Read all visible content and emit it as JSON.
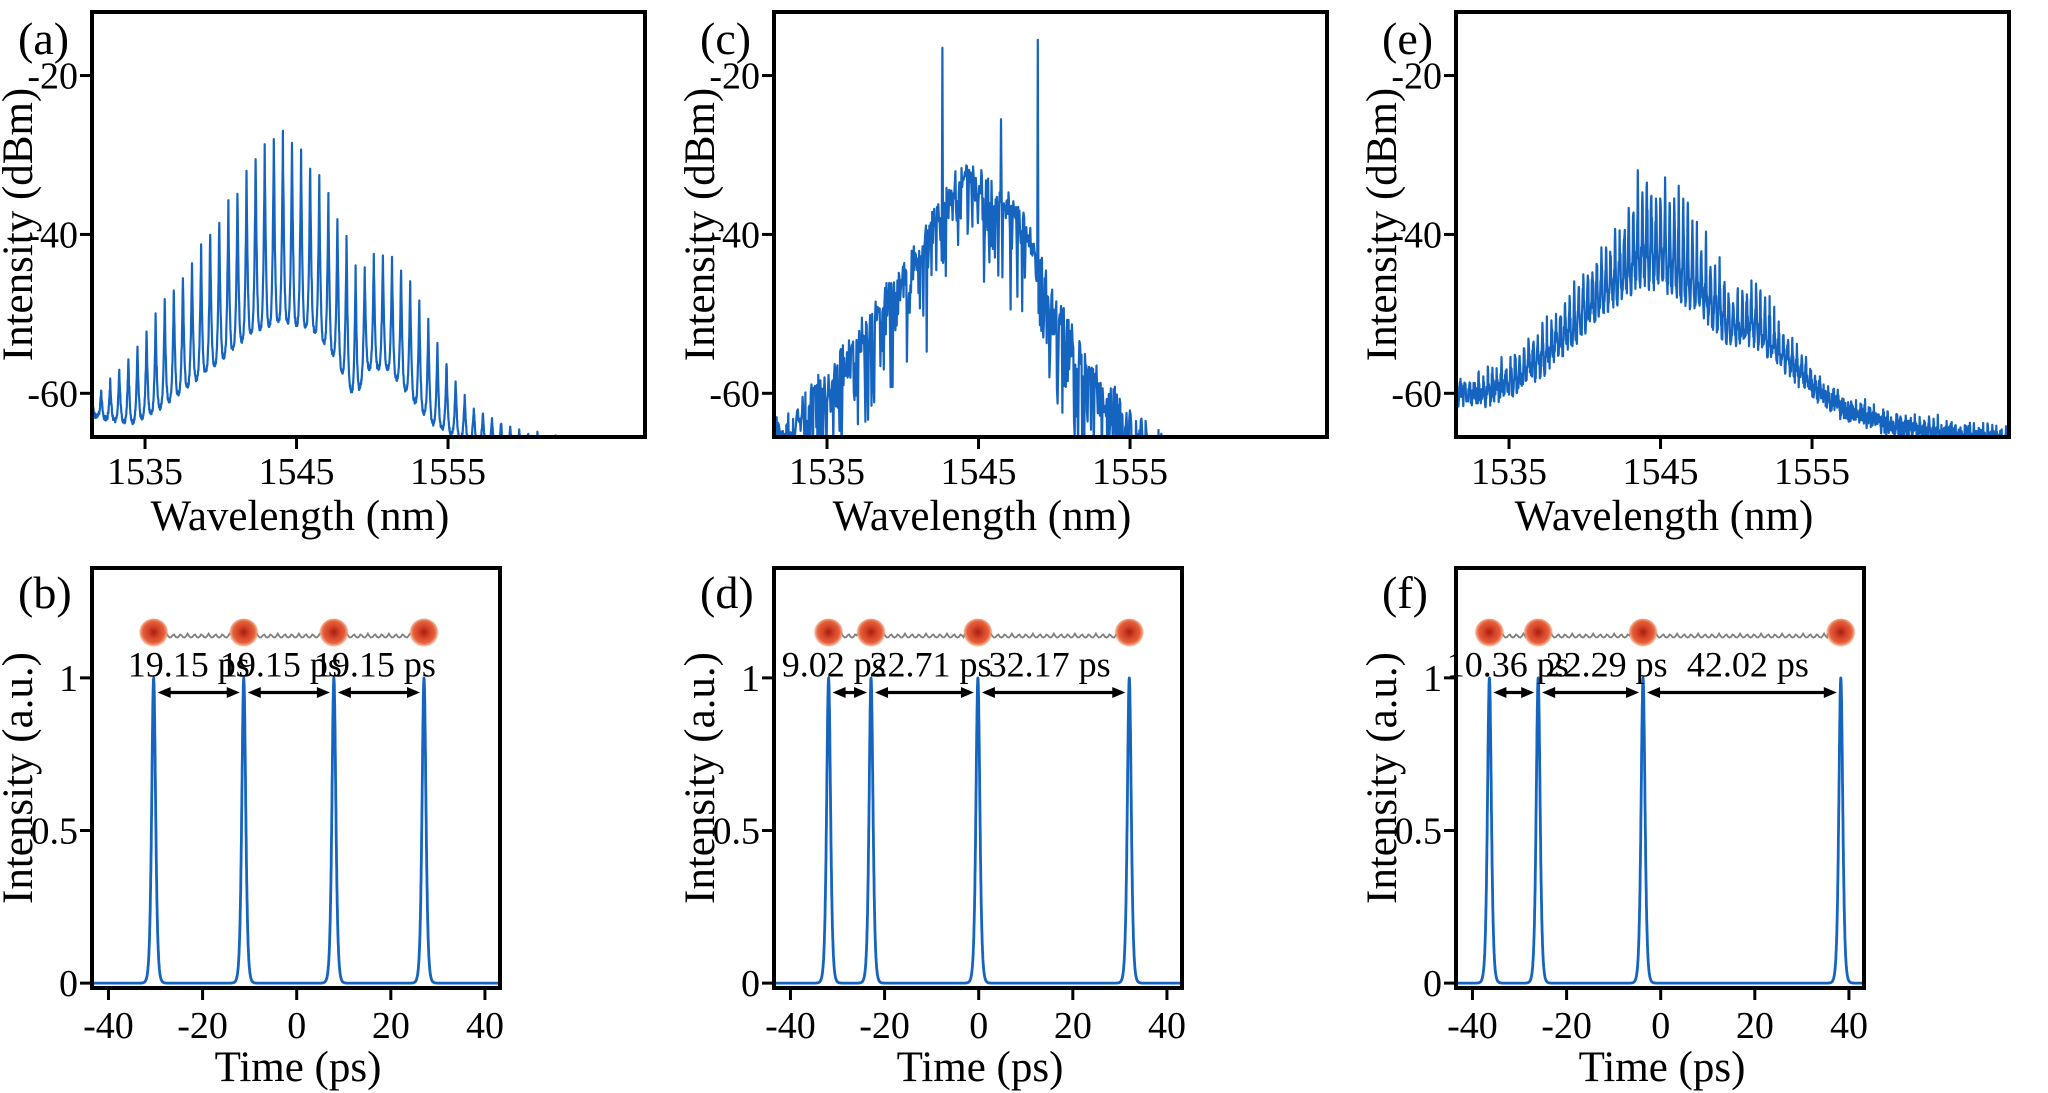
{
  "figure": {
    "background": "#ffffff",
    "series_color": "#1565c0",
    "axis_color": "#000000",
    "ball_color_center": "#a61e10",
    "ball_color_mid": "#d8452a",
    "ball_color_edge": "#f0926c",
    "spring_color": "#7f7f7f"
  },
  "chart_data": [
    {
      "id": "a",
      "panel_label": "(a)",
      "type": "line",
      "kind": "spectrum",
      "style": "comb",
      "xlabel": "Wavelength (nm)",
      "ylabel": "Intensity (dBm)",
      "xlim": [
        1531.5,
        1568
      ],
      "ylim": [
        -65.5,
        -12
      ],
      "xticks": [
        {
          "value": 1535,
          "label": "1535"
        },
        {
          "value": 1545,
          "label": "1545"
        },
        {
          "value": 1555,
          "label": "1555"
        }
      ],
      "yticks": [
        {
          "value": -20,
          "label": "-20"
        },
        {
          "value": -40,
          "label": "-40"
        },
        {
          "value": -60,
          "label": "-60"
        }
      ],
      "comb_period_nm": 0.6,
      "seed": 11,
      "upper_envelope": [
        [
          1531.5,
          -60.5
        ],
        [
          1533,
          -57.5
        ],
        [
          1535,
          -52.5
        ],
        [
          1536.5,
          -47.5
        ],
        [
          1538,
          -43.5
        ],
        [
          1539.5,
          -39
        ],
        [
          1541,
          -34.5
        ],
        [
          1542.5,
          -29.5
        ],
        [
          1543.7,
          -27
        ],
        [
          1544.5,
          -27.5
        ],
        [
          1545.5,
          -29.5
        ],
        [
          1546.5,
          -32.5
        ],
        [
          1547.5,
          -36.5
        ],
        [
          1548.5,
          -41
        ],
        [
          1549.2,
          -46
        ],
        [
          1549.6,
          -43
        ],
        [
          1550.5,
          -41.8
        ],
        [
          1551.5,
          -42.8
        ],
        [
          1552.5,
          -45.5
        ],
        [
          1553.5,
          -49.5
        ],
        [
          1554.5,
          -54
        ],
        [
          1555.5,
          -58
        ],
        [
          1556.5,
          -61
        ],
        [
          1558,
          -63
        ],
        [
          1560,
          -64.5
        ],
        [
          1563,
          -65.3
        ],
        [
          1568,
          -66.5
        ]
      ],
      "lower_envelope": [
        [
          1531.5,
          -62.5
        ],
        [
          1534,
          -63.5
        ],
        [
          1536,
          -61.5
        ],
        [
          1538,
          -58.5
        ],
        [
          1540,
          -55.5
        ],
        [
          1542,
          -52
        ],
        [
          1544,
          -50.5
        ],
        [
          1546,
          -51.5
        ],
        [
          1547.5,
          -55
        ],
        [
          1548.9,
          -60.5
        ],
        [
          1549.6,
          -56.5
        ],
        [
          1551,
          -56.5
        ],
        [
          1552.5,
          -60
        ],
        [
          1554,
          -63.5
        ],
        [
          1556,
          -65.5
        ],
        [
          1558,
          -66.5
        ],
        [
          1568,
          -67.5
        ]
      ]
    },
    {
      "id": "c",
      "panel_label": "(c)",
      "type": "line",
      "kind": "spectrum",
      "style": "noise",
      "xlabel": "Wavelength (nm)",
      "ylabel": "Intensity (dBm)",
      "xlim": [
        1531.5,
        1568
      ],
      "ylim": [
        -65.5,
        -12
      ],
      "xticks": [
        {
          "value": 1535,
          "label": "1535"
        },
        {
          "value": 1545,
          "label": "1545"
        },
        {
          "value": 1555,
          "label": "1555"
        }
      ],
      "yticks": [
        {
          "value": -20,
          "label": "-20"
        },
        {
          "value": -40,
          "label": "-40"
        },
        {
          "value": -60,
          "label": "-60"
        }
      ],
      "noise_depth_db": 12,
      "seed": 23,
      "upper_envelope": [
        [
          1531.5,
          -62.5
        ],
        [
          1532.5,
          -63
        ],
        [
          1533.5,
          -60.5
        ],
        [
          1535,
          -57.5
        ],
        [
          1536.5,
          -53.5
        ],
        [
          1538,
          -49.5
        ],
        [
          1539.5,
          -45.5
        ],
        [
          1541,
          -41
        ],
        [
          1542,
          -37.5
        ],
        [
          1543,
          -34
        ],
        [
          1544,
          -31.5
        ],
        [
          1545,
          -32.5
        ],
        [
          1546,
          -34
        ],
        [
          1547,
          -35.5
        ],
        [
          1548,
          -38
        ],
        [
          1549,
          -41.5
        ],
        [
          1549.8,
          -46
        ],
        [
          1550.5,
          -49.5
        ],
        [
          1551.5,
          -53.5
        ],
        [
          1552.5,
          -56
        ],
        [
          1553.5,
          -58.5
        ],
        [
          1554.5,
          -61.5
        ],
        [
          1555.5,
          -63.5
        ],
        [
          1557,
          -65.5
        ],
        [
          1559,
          -66.8
        ],
        [
          1568,
          -67.3
        ]
      ],
      "spikes": [
        [
          1542.6,
          -16.5
        ],
        [
          1546.5,
          -25.5
        ],
        [
          1548.9,
          -15.5
        ]
      ],
      "dips": [
        [
          1549.7,
          -58
        ]
      ]
    },
    {
      "id": "e",
      "panel_label": "(e)",
      "type": "line",
      "kind": "spectrum",
      "style": "noise-comb",
      "xlabel": "Wavelength (nm)",
      "ylabel": "Intensity (dBm)",
      "xlim": [
        1531.5,
        1568
      ],
      "ylim": [
        -65.5,
        -12
      ],
      "xticks": [
        {
          "value": 1535,
          "label": "1535"
        },
        {
          "value": 1545,
          "label": "1545"
        },
        {
          "value": 1555,
          "label": "1555"
        }
      ],
      "yticks": [
        {
          "value": -20,
          "label": "-20"
        },
        {
          "value": -40,
          "label": "-40"
        },
        {
          "value": -60,
          "label": "-60"
        }
      ],
      "comb_period_nm": 0.3,
      "seed": 37,
      "upper_envelope": [
        [
          1531.5,
          -56.5
        ],
        [
          1532.5,
          -57
        ],
        [
          1534,
          -55.5
        ],
        [
          1536,
          -52
        ],
        [
          1538,
          -48
        ],
        [
          1540,
          -42.5
        ],
        [
          1541.5,
          -38
        ],
        [
          1543,
          -32.5
        ],
        [
          1544,
          -28.5
        ],
        [
          1545,
          -29.5
        ],
        [
          1546,
          -31
        ],
        [
          1547,
          -34
        ],
        [
          1548,
          -38
        ],
        [
          1549,
          -42
        ],
        [
          1550,
          -44.5
        ],
        [
          1551,
          -43.5
        ],
        [
          1552,
          -46
        ],
        [
          1553,
          -49.5
        ],
        [
          1554,
          -52.5
        ],
        [
          1555,
          -55.5
        ],
        [
          1556,
          -58
        ],
        [
          1557.5,
          -60
        ],
        [
          1560,
          -61.5
        ],
        [
          1563,
          -62.5
        ],
        [
          1568,
          -63.5
        ]
      ],
      "lower_envelope": [
        [
          1531.5,
          -59.5
        ],
        [
          1533,
          -59.5
        ],
        [
          1535,
          -58.5
        ],
        [
          1537,
          -56
        ],
        [
          1539,
          -52.5
        ],
        [
          1541,
          -48.5
        ],
        [
          1543,
          -45.5
        ],
        [
          1544,
          -44.5
        ],
        [
          1545,
          -45
        ],
        [
          1547,
          -47.5
        ],
        [
          1549,
          -51
        ],
        [
          1550,
          -52.5
        ],
        [
          1551,
          -51.5
        ],
        [
          1553,
          -55
        ],
        [
          1555,
          -58.5
        ],
        [
          1557,
          -61
        ],
        [
          1560,
          -63
        ],
        [
          1563,
          -64
        ],
        [
          1568,
          -65
        ]
      ]
    },
    {
      "id": "b",
      "panel_label": "(b)",
      "type": "line",
      "kind": "pulse-train",
      "xlabel": "Time (ps)",
      "ylabel": "Intensity (a.u.)",
      "xlim": [
        -43.5,
        43.2
      ],
      "ylim": [
        -0.016,
        1.36
      ],
      "xticks": [
        {
          "value": -40,
          "label": "-40"
        },
        {
          "value": -20,
          "label": "-20"
        },
        {
          "value": 0,
          "label": "0"
        },
        {
          "value": 20,
          "label": "20"
        },
        {
          "value": 40,
          "label": "40"
        }
      ],
      "yticks": [
        {
          "value": 0,
          "label": "0"
        },
        {
          "value": 0.5,
          "label": "0.5"
        },
        {
          "value": 1,
          "label": "1"
        }
      ],
      "pulse_positions_ps": [
        -30.4,
        -11.25,
        7.9,
        27.05
      ],
      "pulse_width_ps": 0.55,
      "pulse_peak": 1,
      "separations": [
        {
          "between": [
            0,
            1
          ],
          "label": "19.15 ps"
        },
        {
          "between": [
            1,
            2
          ],
          "label": "19.15 ps"
        },
        {
          "between": [
            2,
            3
          ],
          "label": "19.15 ps"
        }
      ],
      "molecule_balls": 4
    },
    {
      "id": "d",
      "panel_label": "(d)",
      "type": "line",
      "kind": "pulse-train",
      "xlabel": "Time (ps)",
      "ylabel": "Intensity (a.u.)",
      "xlim": [
        -43.5,
        43.2
      ],
      "ylim": [
        -0.016,
        1.36
      ],
      "xticks": [
        {
          "value": -40,
          "label": "-40"
        },
        {
          "value": -20,
          "label": "-20"
        },
        {
          "value": 0,
          "label": "0"
        },
        {
          "value": 20,
          "label": "20"
        },
        {
          "value": 40,
          "label": "40"
        }
      ],
      "yticks": [
        {
          "value": 0,
          "label": "0"
        },
        {
          "value": 0.5,
          "label": "0.5"
        },
        {
          "value": 1,
          "label": "1"
        }
      ],
      "pulse_positions_ps": [
        -31.9,
        -22.88,
        -0.17,
        32.0
      ],
      "pulse_width_ps": 0.55,
      "pulse_peak": 1,
      "separations": [
        {
          "between": [
            0,
            1
          ],
          "label": "9.02 ps"
        },
        {
          "between": [
            1,
            2
          ],
          "label": "22.71 ps"
        },
        {
          "between": [
            2,
            3
          ],
          "label": "32.17 ps"
        }
      ],
      "molecule_balls": 4
    },
    {
      "id": "f",
      "panel_label": "(f)",
      "type": "line",
      "kind": "pulse-train",
      "xlabel": "Time (ps)",
      "ylabel": "Intensity (a.u.)",
      "xlim": [
        -43.5,
        43.2
      ],
      "ylim": [
        -0.016,
        1.36
      ],
      "xticks": [
        {
          "value": -40,
          "label": "-40"
        },
        {
          "value": -20,
          "label": "-20"
        },
        {
          "value": 0,
          "label": "0"
        },
        {
          "value": 20,
          "label": "20"
        },
        {
          "value": 40,
          "label": "40"
        }
      ],
      "yticks": [
        {
          "value": 0,
          "label": "0"
        },
        {
          "value": 0.5,
          "label": "0.5"
        },
        {
          "value": 1,
          "label": "1"
        }
      ],
      "pulse_positions_ps": [
        -36.4,
        -26.04,
        -3.75,
        38.27
      ],
      "pulse_width_ps": 0.55,
      "pulse_peak": 1,
      "separations": [
        {
          "between": [
            0,
            1
          ],
          "label": "10.36 ps"
        },
        {
          "between": [
            1,
            2
          ],
          "label": "22.29 ps"
        },
        {
          "between": [
            2,
            3
          ],
          "label": "42.02 ps"
        }
      ],
      "molecule_balls": 4
    }
  ]
}
